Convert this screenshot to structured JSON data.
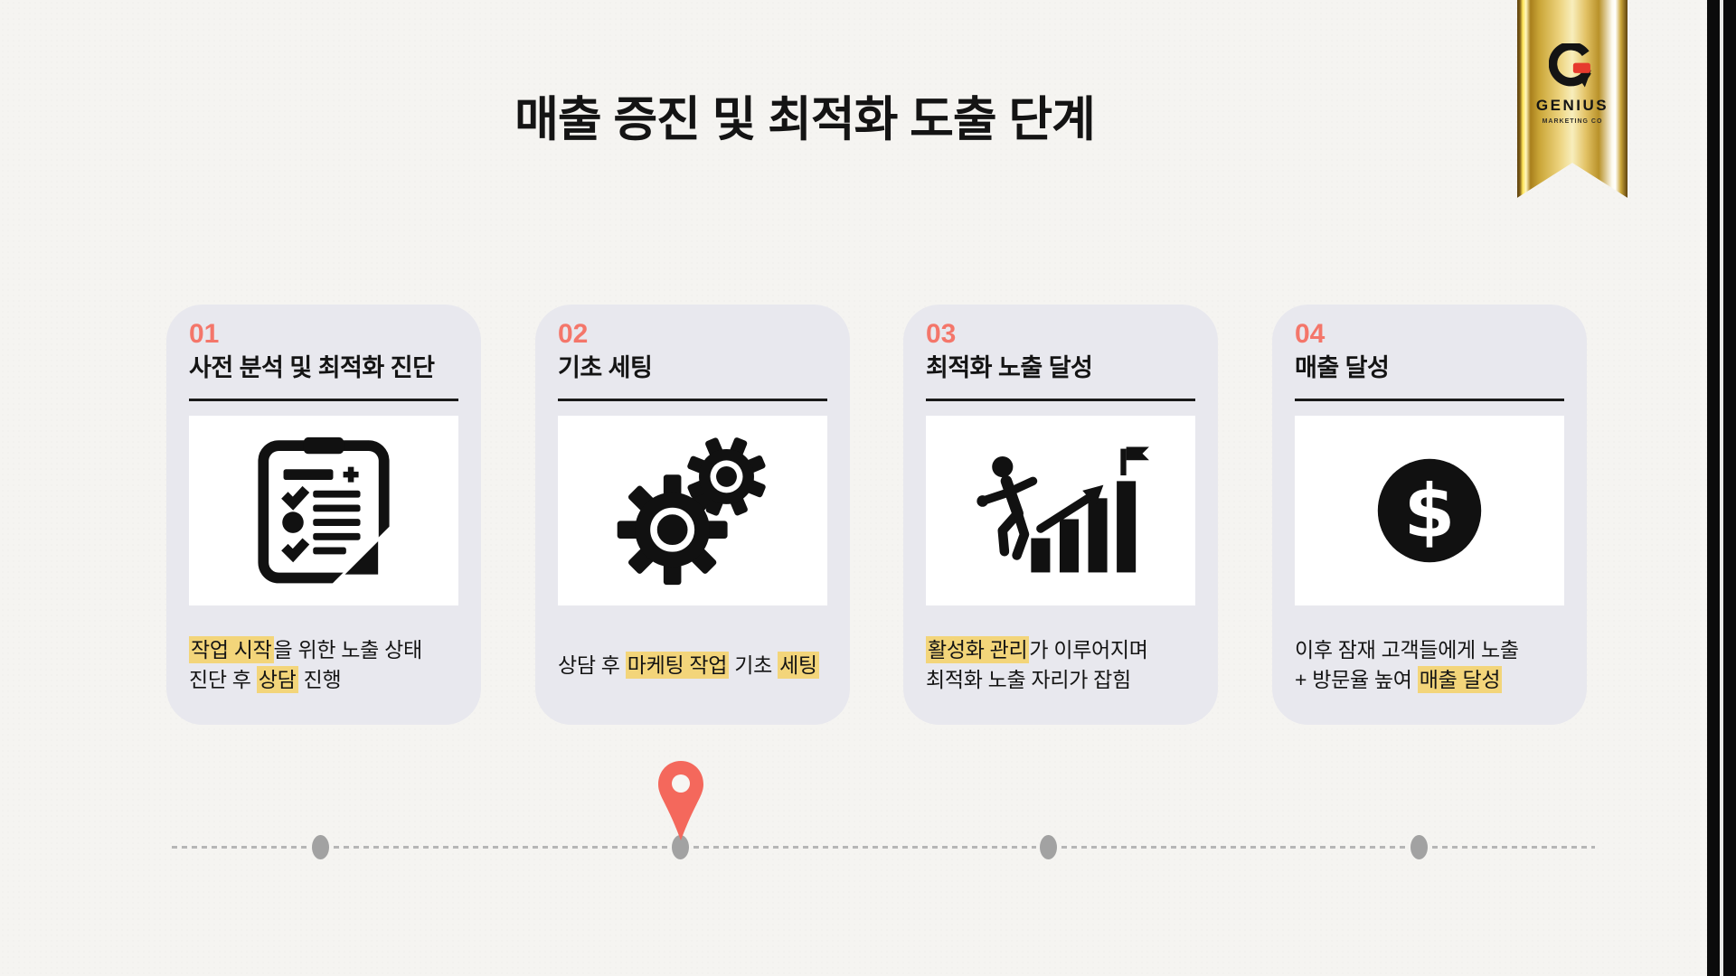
{
  "page": {
    "title": "매출 증진 및 최적화 도출 단계",
    "background": "#f5f4f1",
    "text_color": "#141414"
  },
  "brand": {
    "monogram": "G",
    "name": "GENIUS",
    "subtitle": "MARKETING CO",
    "ribbon_gold": "#caa537",
    "logo_red": "#e63a2e"
  },
  "colors": {
    "accent_coral": "#f4766a",
    "pin_coral": "#f4685c",
    "highlight_yellow": "#f3d57a",
    "card_background": "#e8e8ee",
    "icon_black": "#141414",
    "timeline_gray": "#a2a2a2"
  },
  "steps": [
    {
      "number": "01",
      "title": "사전 분석 및 최적화 진단",
      "icon": "clipboard-checklist-icon",
      "caption": [
        [
          {
            "t": "작업 시작",
            "hl": true
          },
          {
            "t": "을 위한 노출 상태"
          }
        ],
        [
          {
            "t": "진단 후 "
          },
          {
            "t": "상담",
            "hl": true
          },
          {
            "t": " 진행"
          }
        ]
      ]
    },
    {
      "number": "02",
      "title": "기초 세팅",
      "icon": "gears-icon",
      "caption": [
        [
          {
            "t": "상담 후 "
          },
          {
            "t": "마케팅 작업",
            "hl": true
          },
          {
            "t": " 기초 "
          },
          {
            "t": "세팅",
            "hl": true
          }
        ]
      ]
    },
    {
      "number": "03",
      "title": "최적화 노출 달성",
      "icon": "growth-chart-icon",
      "caption": [
        [
          {
            "t": "활성화 관리",
            "hl": true
          },
          {
            "t": "가 이루어지며"
          }
        ],
        [
          {
            "t": "최적화 노출 자리가 잡힘"
          }
        ]
      ]
    },
    {
      "number": "04",
      "title": "매출 달성",
      "icon": "dollar-coin-icon",
      "caption": [
        [
          {
            "t": "이후 잠재 고객들에게 노출"
          }
        ],
        [
          {
            "t": "+ 방문율 높여 "
          },
          {
            "t": "매출 달성",
            "hl": true
          }
        ]
      ]
    }
  ],
  "timeline": {
    "dot_count": 4,
    "active_step": 2,
    "marker": "location-pin-icon"
  }
}
